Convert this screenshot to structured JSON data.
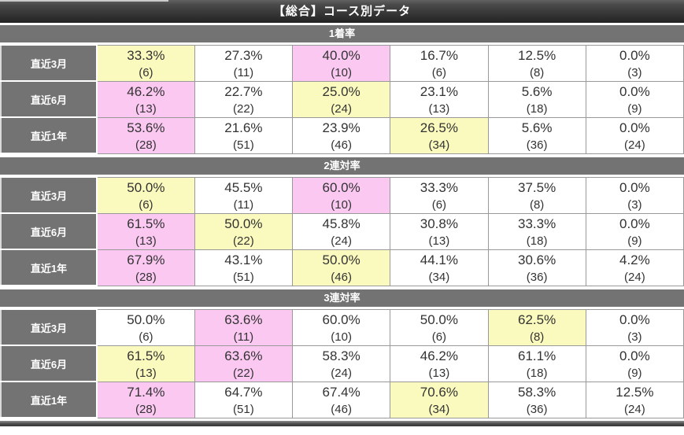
{
  "title_bar": {
    "title": "【総合】コース別データ"
  },
  "colors": {
    "top_rank_highlight": "#fbc8f2",
    "second_rank_highlight": "#fafabe",
    "header_bar": "#737373",
    "title_bar_gradient_top": "#636363",
    "title_bar_gradient_bottom": "#222222"
  },
  "sections": [
    {
      "header": "1着率",
      "rows": [
        {
          "label": "直近3月",
          "cells": [
            {
              "pct": "33.3%",
              "n": "(6)",
              "hl": "second"
            },
            {
              "pct": "27.3%",
              "n": "(11)",
              "hl": "none"
            },
            {
              "pct": "40.0%",
              "n": "(10)",
              "hl": "top"
            },
            {
              "pct": "16.7%",
              "n": "(6)",
              "hl": "none"
            },
            {
              "pct": "12.5%",
              "n": "(8)",
              "hl": "none"
            },
            {
              "pct": "0.0%",
              "n": "(3)",
              "hl": "none"
            }
          ]
        },
        {
          "label": "直近6月",
          "cells": [
            {
              "pct": "46.2%",
              "n": "(13)",
              "hl": "top"
            },
            {
              "pct": "22.7%",
              "n": "(22)",
              "hl": "none"
            },
            {
              "pct": "25.0%",
              "n": "(24)",
              "hl": "second"
            },
            {
              "pct": "23.1%",
              "n": "(13)",
              "hl": "none"
            },
            {
              "pct": "5.6%",
              "n": "(18)",
              "hl": "none"
            },
            {
              "pct": "0.0%",
              "n": "(9)",
              "hl": "none"
            }
          ]
        },
        {
          "label": "直近1年",
          "cells": [
            {
              "pct": "53.6%",
              "n": "(28)",
              "hl": "top"
            },
            {
              "pct": "21.6%",
              "n": "(51)",
              "hl": "none"
            },
            {
              "pct": "23.9%",
              "n": "(46)",
              "hl": "none"
            },
            {
              "pct": "26.5%",
              "n": "(34)",
              "hl": "second"
            },
            {
              "pct": "5.6%",
              "n": "(36)",
              "hl": "none"
            },
            {
              "pct": "0.0%",
              "n": "(24)",
              "hl": "none"
            }
          ]
        }
      ]
    },
    {
      "header": "2連対率",
      "rows": [
        {
          "label": "直近3月",
          "cells": [
            {
              "pct": "50.0%",
              "n": "(6)",
              "hl": "second"
            },
            {
              "pct": "45.5%",
              "n": "(11)",
              "hl": "none"
            },
            {
              "pct": "60.0%",
              "n": "(10)",
              "hl": "top"
            },
            {
              "pct": "33.3%",
              "n": "(6)",
              "hl": "none"
            },
            {
              "pct": "37.5%",
              "n": "(8)",
              "hl": "none"
            },
            {
              "pct": "0.0%",
              "n": "(3)",
              "hl": "none"
            }
          ]
        },
        {
          "label": "直近6月",
          "cells": [
            {
              "pct": "61.5%",
              "n": "(13)",
              "hl": "top"
            },
            {
              "pct": "50.0%",
              "n": "(22)",
              "hl": "second"
            },
            {
              "pct": "45.8%",
              "n": "(24)",
              "hl": "none"
            },
            {
              "pct": "30.8%",
              "n": "(13)",
              "hl": "none"
            },
            {
              "pct": "33.3%",
              "n": "(18)",
              "hl": "none"
            },
            {
              "pct": "0.0%",
              "n": "(9)",
              "hl": "none"
            }
          ]
        },
        {
          "label": "直近1年",
          "cells": [
            {
              "pct": "67.9%",
              "n": "(28)",
              "hl": "top"
            },
            {
              "pct": "43.1%",
              "n": "(51)",
              "hl": "none"
            },
            {
              "pct": "50.0%",
              "n": "(46)",
              "hl": "second"
            },
            {
              "pct": "44.1%",
              "n": "(34)",
              "hl": "none"
            },
            {
              "pct": "30.6%",
              "n": "(36)",
              "hl": "none"
            },
            {
              "pct": "4.2%",
              "n": "(24)",
              "hl": "none"
            }
          ]
        }
      ]
    },
    {
      "header": "3連対率",
      "rows": [
        {
          "label": "直近3月",
          "cells": [
            {
              "pct": "50.0%",
              "n": "(6)",
              "hl": "none"
            },
            {
              "pct": "63.6%",
              "n": "(11)",
              "hl": "top"
            },
            {
              "pct": "60.0%",
              "n": "(10)",
              "hl": "none"
            },
            {
              "pct": "50.0%",
              "n": "(6)",
              "hl": "none"
            },
            {
              "pct": "62.5%",
              "n": "(8)",
              "hl": "second"
            },
            {
              "pct": "0.0%",
              "n": "(3)",
              "hl": "none"
            }
          ]
        },
        {
          "label": "直近6月",
          "cells": [
            {
              "pct": "61.5%",
              "n": "(13)",
              "hl": "second"
            },
            {
              "pct": "63.6%",
              "n": "(22)",
              "hl": "top"
            },
            {
              "pct": "58.3%",
              "n": "(24)",
              "hl": "none"
            },
            {
              "pct": "46.2%",
              "n": "(13)",
              "hl": "none"
            },
            {
              "pct": "61.1%",
              "n": "(18)",
              "hl": "none"
            },
            {
              "pct": "0.0%",
              "n": "(9)",
              "hl": "none"
            }
          ]
        },
        {
          "label": "直近1年",
          "cells": [
            {
              "pct": "71.4%",
              "n": "(28)",
              "hl": "top"
            },
            {
              "pct": "64.7%",
              "n": "(51)",
              "hl": "none"
            },
            {
              "pct": "67.4%",
              "n": "(46)",
              "hl": "none"
            },
            {
              "pct": "70.6%",
              "n": "(34)",
              "hl": "second"
            },
            {
              "pct": "58.3%",
              "n": "(36)",
              "hl": "none"
            },
            {
              "pct": "12.5%",
              "n": "(24)",
              "hl": "none"
            }
          ]
        }
      ]
    }
  ]
}
